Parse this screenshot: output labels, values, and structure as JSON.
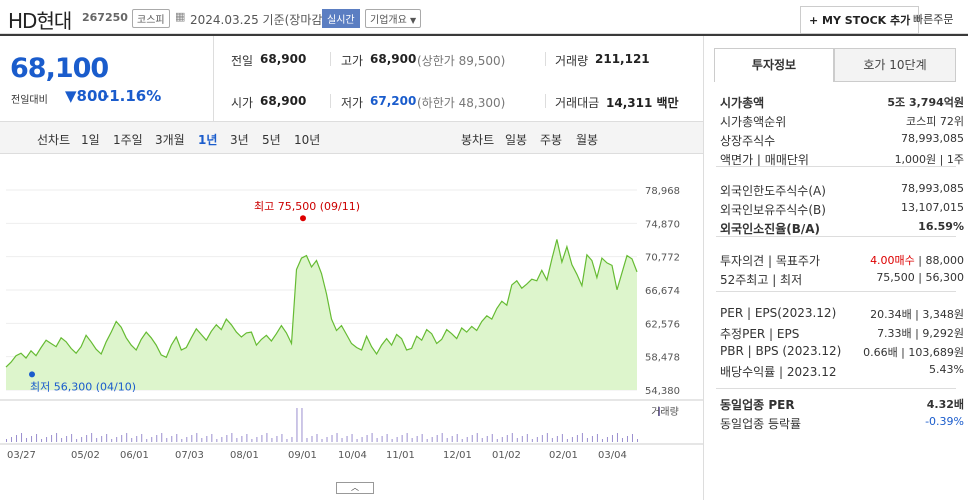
{
  "header": {
    "name": "HD현대",
    "code": "267250",
    "market": "코스피",
    "date": "2024.03.25",
    "date_suffix": "기준(장마감)",
    "live": "실시간",
    "company_info": "기업개요",
    "my_stock": "+ MY STOCK 추가",
    "quick_order": "빠른주문"
  },
  "summary": {
    "price": "68,100",
    "change_label": "전일대비",
    "change_value": "800",
    "change_pct": "-1.16%",
    "prev_close_label": "전일",
    "prev_close": "68,900",
    "high_label": "고가",
    "high": "68,900",
    "upper_limit": "(상한가 89,500)",
    "volume_label": "거래량",
    "volume": "211,121",
    "open_label": "시가",
    "open": "68,900",
    "low_label": "저가",
    "low": "67,200",
    "lower_limit": "(하한가 48,300)",
    "amount_label": "거래대금",
    "amount": "14,311",
    "amount_unit": "백만"
  },
  "periods": {
    "line_label": "선차트",
    "line_items": [
      "1일",
      "1주일",
      "3개월",
      "1년",
      "3년",
      "5년",
      "10년"
    ],
    "active": "1년",
    "candle_label": "봉차트",
    "candle_items": [
      "일봉",
      "주봉",
      "월봉"
    ]
  },
  "chart": {
    "y_ticks": [
      "78,968",
      "74,870",
      "70,772",
      "66,674",
      "62,576",
      "58,478",
      "54,380"
    ],
    "y_min": 54380,
    "y_max": 78968,
    "x_ticks": [
      "03/27",
      "05/02",
      "06/01",
      "07/03",
      "08/01",
      "09/01",
      "10/04",
      "11/01",
      "12/01",
      "01/02",
      "02/01",
      "03/04"
    ],
    "max_label": "최고 75,500 (09/11)",
    "min_label": "최저 56,300 (04/10)",
    "volume_label": "거래량",
    "line_color": "#66bb33",
    "fill_color": "#ddf5cc",
    "prices": [
      57200,
      57800,
      58600,
      58900,
      58300,
      59200,
      58600,
      59600,
      60500,
      60100,
      59700,
      60800,
      60300,
      59500,
      58900,
      59700,
      61100,
      60300,
      59400,
      58800,
      60300,
      61500,
      62800,
      62100,
      60800,
      59900,
      59300,
      60600,
      61500,
      60800,
      59900,
      58700,
      58400,
      59900,
      60900,
      59300,
      59600,
      60800,
      61900,
      61200,
      60500,
      61600,
      62400,
      61800,
      63100,
      62400,
      61500,
      60900,
      61400,
      61500,
      59900,
      60600,
      61100,
      60400,
      61300,
      62300,
      61400,
      60100,
      69200,
      70600,
      70900,
      69500,
      70300,
      68700,
      66200,
      63100,
      61700,
      62300,
      61200,
      60100,
      59600,
      59300,
      61000,
      59700,
      58800,
      59900,
      60700,
      59900,
      61200,
      60700,
      59300,
      59500,
      61000,
      60500,
      61800,
      61300,
      60100,
      60600,
      61800,
      61300,
      60700,
      62000,
      61500,
      62200,
      61700,
      62800,
      63500,
      63100,
      64400,
      65300,
      64800,
      67300,
      67800,
      66900,
      67400,
      68000,
      67800,
      69100,
      67900,
      70500,
      72900,
      70100,
      72000,
      69800,
      68600,
      67200,
      71000,
      70300,
      68200,
      70600,
      70000,
      69700,
      66700,
      68800,
      70900,
      70500,
      68900
    ]
  },
  "tabs": {
    "invest": "투자정보",
    "quote": "호가 10단계"
  },
  "right": {
    "group1": [
      {
        "k": "시가총액",
        "v": "5조 3,794억원",
        "bold": true
      },
      {
        "k": "시가총액순위",
        "v": "코스피 72위"
      },
      {
        "k": "상장주식수",
        "v": "78,993,085"
      },
      {
        "k": "액면가 | 매매단위",
        "v": "1,000원 | 1주"
      }
    ],
    "group2": [
      {
        "k": "외국인한도주식수(A)",
        "v": "78,993,085"
      },
      {
        "k": "외국인보유주식수(B)",
        "v": "13,107,015"
      },
      {
        "k": "외국인소진율(B/A)",
        "v": "16.59%",
        "bold": true
      }
    ],
    "group3": [
      {
        "k": "투자의견 | 목표주가",
        "v_red": "4.00매수",
        "v": " | 88,000"
      },
      {
        "k": "52주최고 | 최저",
        "v": "75,500 | 56,300"
      }
    ],
    "group4": [
      {
        "k": "PER | EPS(2023.12)",
        "v": "20.34배 | 3,348원"
      },
      {
        "k": "추정PER | EPS",
        "v": "7.33배 | 9,292원"
      },
      {
        "k": "PBR | BPS (2023.12)",
        "v": "0.66배 | 103,689원"
      },
      {
        "k": "배당수익률 | 2023.12",
        "v": "5.43%"
      }
    ],
    "industry_per_label": "동일업종 PER",
    "industry_per": "4.32배",
    "industry_rate_label": "동일업종 등락률",
    "industry_rate": "-0.39%"
  }
}
